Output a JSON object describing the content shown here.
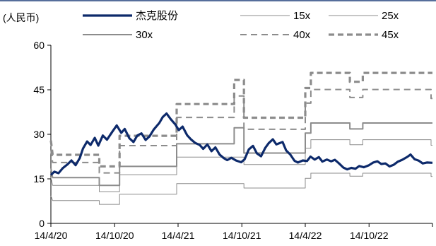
{
  "chart_data": {
    "type": "line",
    "unit_label": "(人民币)",
    "x_tick_labels": [
      "14/4/20",
      "14/10/20",
      "14/4/21",
      "14/10/21",
      "14/4/22",
      "14/10/22"
    ],
    "x_ticks": [
      "2020-04-14",
      "2020-10-14",
      "2021-04-14",
      "2021-10-14",
      "2022-04-14",
      "2022-10-14"
    ],
    "x_range": [
      "2020-04-14",
      "2023-04-14"
    ],
    "ylim": [
      0,
      60
    ],
    "y_ticks": [
      0,
      15,
      30,
      45,
      60
    ],
    "grid": false,
    "legend_position": "top",
    "colors": {
      "price": "#0d2a6b",
      "band": "#8c8c8c",
      "top_rule": "#1f3f7a"
    },
    "series": [
      {
        "name": "杰克股份",
        "style": "thick-solid",
        "color": "#0d2a6b",
        "points": [
          [
            "2020-04-14",
            16.3
          ],
          [
            "2020-04-24",
            17.4
          ],
          [
            "2020-05-06",
            16.9
          ],
          [
            "2020-05-18",
            18.6
          ],
          [
            "2020-06-01",
            19.9
          ],
          [
            "2020-06-12",
            21.2
          ],
          [
            "2020-06-24",
            19.6
          ],
          [
            "2020-07-06",
            22.0
          ],
          [
            "2020-07-15",
            25.2
          ],
          [
            "2020-07-27",
            27.6
          ],
          [
            "2020-08-06",
            26.4
          ],
          [
            "2020-08-18",
            28.8
          ],
          [
            "2020-08-28",
            26.2
          ],
          [
            "2020-09-10",
            29.6
          ],
          [
            "2020-09-22",
            28.2
          ],
          [
            "2020-10-08",
            31.0
          ],
          [
            "2020-10-20",
            33.0
          ],
          [
            "2020-11-02",
            30.5
          ],
          [
            "2020-11-12",
            31.8
          ],
          [
            "2020-11-25",
            28.7
          ],
          [
            "2020-12-07",
            27.4
          ],
          [
            "2020-12-18",
            29.6
          ],
          [
            "2020-12-30",
            30.3
          ],
          [
            "2021-01-11",
            28.1
          ],
          [
            "2021-01-22",
            29.3
          ],
          [
            "2021-02-03",
            31.6
          ],
          [
            "2021-02-19",
            33.8
          ],
          [
            "2021-03-01",
            35.8
          ],
          [
            "2021-03-12",
            37.0
          ],
          [
            "2021-03-24",
            35.1
          ],
          [
            "2021-04-06",
            33.3
          ],
          [
            "2021-04-16",
            31.4
          ],
          [
            "2021-04-27",
            32.6
          ],
          [
            "2021-05-10",
            29.7
          ],
          [
            "2021-05-21",
            28.3
          ],
          [
            "2021-06-02",
            27.1
          ],
          [
            "2021-06-15",
            26.4
          ],
          [
            "2021-06-25",
            25.1
          ],
          [
            "2021-07-07",
            26.6
          ],
          [
            "2021-07-19",
            24.3
          ],
          [
            "2021-07-30",
            25.6
          ],
          [
            "2021-08-11",
            23.2
          ],
          [
            "2021-08-23",
            22.0
          ],
          [
            "2021-09-02",
            21.3
          ],
          [
            "2021-09-14",
            22.1
          ],
          [
            "2021-09-27",
            21.2
          ],
          [
            "2021-10-12",
            20.6
          ],
          [
            "2021-10-22",
            21.6
          ],
          [
            "2021-11-03",
            24.9
          ],
          [
            "2021-11-15",
            26.1
          ],
          [
            "2021-11-26",
            23.6
          ],
          [
            "2021-12-08",
            22.6
          ],
          [
            "2021-12-20",
            25.4
          ],
          [
            "2021-12-30",
            27.0
          ],
          [
            "2022-01-11",
            28.3
          ],
          [
            "2022-01-21",
            26.6
          ],
          [
            "2022-02-08",
            27.4
          ],
          [
            "2022-02-18",
            24.6
          ],
          [
            "2022-03-02",
            23.2
          ],
          [
            "2022-03-14",
            21.1
          ],
          [
            "2022-03-24",
            20.5
          ],
          [
            "2022-04-07",
            21.2
          ],
          [
            "2022-04-19",
            21.0
          ],
          [
            "2022-04-29",
            22.5
          ],
          [
            "2022-05-11",
            21.5
          ],
          [
            "2022-05-23",
            22.3
          ],
          [
            "2022-06-02",
            20.8
          ],
          [
            "2022-06-15",
            21.5
          ],
          [
            "2022-06-27",
            20.9
          ],
          [
            "2022-07-08",
            21.4
          ],
          [
            "2022-07-20",
            20.2
          ],
          [
            "2022-08-01",
            18.8
          ],
          [
            "2022-08-12",
            18.2
          ],
          [
            "2022-08-24",
            18.7
          ],
          [
            "2022-09-05",
            18.4
          ],
          [
            "2022-09-16",
            19.3
          ],
          [
            "2022-09-29",
            18.9
          ],
          [
            "2022-10-14",
            19.6
          ],
          [
            "2022-10-26",
            20.5
          ],
          [
            "2022-11-07",
            20.9
          ],
          [
            "2022-11-18",
            20.0
          ],
          [
            "2022-11-30",
            20.2
          ],
          [
            "2022-12-12",
            19.2
          ],
          [
            "2022-12-23",
            19.7
          ],
          [
            "2023-01-05",
            20.8
          ],
          [
            "2023-01-17",
            21.4
          ],
          [
            "2023-02-01",
            22.4
          ],
          [
            "2023-02-10",
            23.2
          ],
          [
            "2023-02-22",
            21.6
          ],
          [
            "2023-03-06",
            21.1
          ],
          [
            "2023-03-17",
            20.2
          ],
          [
            "2023-03-29",
            20.5
          ],
          [
            "2023-04-14",
            20.4
          ]
        ]
      },
      {
        "name": "15x",
        "style": "thin-solid",
        "color": "#8c8c8c",
        "points": [
          [
            "2020-04-14",
            9.3
          ],
          [
            "2020-04-19",
            7.7
          ],
          [
            "2020-08-31",
            7.7
          ],
          [
            "2020-08-31",
            6.4
          ],
          [
            "2020-10-28",
            6.4
          ],
          [
            "2020-10-28",
            9.8
          ],
          [
            "2021-04-10",
            9.8
          ],
          [
            "2021-04-10",
            13.4
          ],
          [
            "2021-10-20",
            13.4
          ],
          [
            "2021-10-20",
            11.9
          ],
          [
            "2022-04-14",
            11.9
          ],
          [
            "2022-04-14",
            15.2
          ],
          [
            "2022-04-30",
            15.2
          ],
          [
            "2022-04-30",
            16.9
          ],
          [
            "2022-08-20",
            16.9
          ],
          [
            "2022-08-20",
            15.9
          ],
          [
            "2022-09-26",
            15.9
          ],
          [
            "2022-09-26",
            16.9
          ],
          [
            "2023-04-10",
            16.9
          ],
          [
            "2023-04-10",
            15.8
          ],
          [
            "2023-04-14",
            15.8
          ]
        ]
      },
      {
        "name": "25x",
        "style": "thin-solid",
        "color": "#8c8c8c",
        "points": [
          [
            "2020-04-14",
            15.5
          ],
          [
            "2020-04-19",
            12.8
          ],
          [
            "2020-08-31",
            12.8
          ],
          [
            "2020-08-31",
            10.7
          ],
          [
            "2020-10-28",
            10.7
          ],
          [
            "2020-10-28",
            16.4
          ],
          [
            "2021-04-10",
            16.4
          ],
          [
            "2021-04-10",
            22.3
          ],
          [
            "2021-10-20",
            22.3
          ],
          [
            "2021-10-20",
            19.8
          ],
          [
            "2022-04-14",
            19.8
          ],
          [
            "2022-04-14",
            25.3
          ],
          [
            "2022-04-30",
            25.3
          ],
          [
            "2022-04-30",
            28.2
          ],
          [
            "2022-08-20",
            28.2
          ],
          [
            "2022-08-20",
            26.5
          ],
          [
            "2022-09-26",
            26.5
          ],
          [
            "2022-09-26",
            28.2
          ],
          [
            "2023-04-10",
            28.2
          ],
          [
            "2023-04-10",
            26.3
          ],
          [
            "2023-04-14",
            26.3
          ]
        ]
      },
      {
        "name": "30x",
        "style": "medium-solid",
        "color": "#8c8c8c",
        "points": [
          [
            "2020-04-14",
            18.6
          ],
          [
            "2020-04-19",
            15.4
          ],
          [
            "2020-08-31",
            15.4
          ],
          [
            "2020-08-31",
            12.8
          ],
          [
            "2020-10-28",
            12.8
          ],
          [
            "2020-10-28",
            19.2
          ],
          [
            "2021-04-10",
            19.2
          ],
          [
            "2021-04-10",
            26.8
          ],
          [
            "2021-09-22",
            26.8
          ],
          [
            "2021-09-22",
            32.2
          ],
          [
            "2021-10-20",
            32.2
          ],
          [
            "2021-10-20",
            23.7
          ],
          [
            "2022-04-14",
            23.7
          ],
          [
            "2022-04-14",
            30.4
          ],
          [
            "2022-04-30",
            30.4
          ],
          [
            "2022-04-30",
            33.8
          ],
          [
            "2022-08-20",
            33.8
          ],
          [
            "2022-08-20",
            31.8
          ],
          [
            "2022-09-26",
            31.8
          ],
          [
            "2022-09-26",
            33.8
          ],
          [
            "2023-04-14",
            33.8
          ]
        ]
      },
      {
        "name": "40x",
        "style": "dashed",
        "color": "#8c8c8c",
        "points": [
          [
            "2020-04-14",
            24.8
          ],
          [
            "2020-04-19",
            20.5
          ],
          [
            "2020-08-31",
            20.5
          ],
          [
            "2020-08-31",
            17.0
          ],
          [
            "2020-10-28",
            17.0
          ],
          [
            "2020-10-28",
            26.2
          ],
          [
            "2021-04-10",
            26.2
          ],
          [
            "2021-04-10",
            35.7
          ],
          [
            "2021-09-22",
            35.7
          ],
          [
            "2021-09-22",
            42.9
          ],
          [
            "2021-10-20",
            42.9
          ],
          [
            "2021-10-20",
            31.7
          ],
          [
            "2022-04-14",
            31.7
          ],
          [
            "2022-04-14",
            40.5
          ],
          [
            "2022-04-30",
            40.5
          ],
          [
            "2022-04-30",
            45.1
          ],
          [
            "2022-08-20",
            45.1
          ],
          [
            "2022-08-20",
            42.4
          ],
          [
            "2022-09-26",
            42.4
          ],
          [
            "2022-09-26",
            45.1
          ],
          [
            "2023-04-10",
            45.1
          ],
          [
            "2023-04-10",
            42.1
          ],
          [
            "2023-04-14",
            42.1
          ]
        ]
      },
      {
        "name": "45x",
        "style": "thick-dashed",
        "color": "#8c8c8c",
        "points": [
          [
            "2020-04-14",
            27.9
          ],
          [
            "2020-04-19",
            23.1
          ],
          [
            "2020-08-31",
            23.1
          ],
          [
            "2020-08-31",
            19.2
          ],
          [
            "2020-10-28",
            19.2
          ],
          [
            "2020-10-28",
            29.5
          ],
          [
            "2021-04-10",
            29.5
          ],
          [
            "2021-04-10",
            40.2
          ],
          [
            "2021-09-22",
            40.2
          ],
          [
            "2021-09-22",
            48.3
          ],
          [
            "2021-10-20",
            48.3
          ],
          [
            "2021-10-20",
            35.6
          ],
          [
            "2022-04-14",
            35.6
          ],
          [
            "2022-04-14",
            45.6
          ],
          [
            "2022-04-30",
            45.6
          ],
          [
            "2022-04-30",
            50.7
          ],
          [
            "2022-08-20",
            50.7
          ],
          [
            "2022-08-20",
            47.7
          ],
          [
            "2022-09-26",
            47.7
          ],
          [
            "2022-09-26",
            50.7
          ],
          [
            "2023-04-14",
            50.7
          ]
        ]
      }
    ]
  }
}
